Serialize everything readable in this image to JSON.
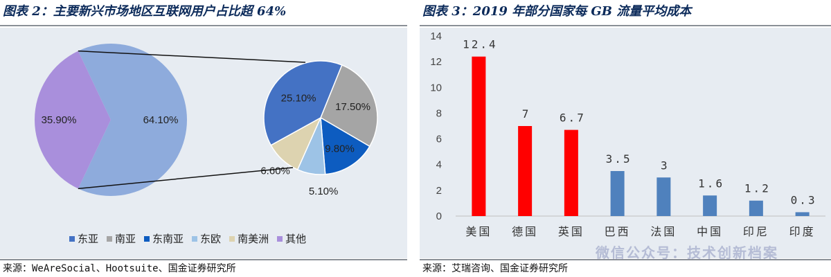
{
  "left": {
    "title": "图表 2：主要新兴市场地区互联网用户占比超 64%",
    "source": "来源：WeAreSocial、Hootsuite、国金证券研究所",
    "colors": {
      "east_asia": "#4472c4",
      "south_asia": "#a5a5a5",
      "southeast_asia": "#0d5cc0",
      "east_europe": "#9dc3e6",
      "south_america": "#ddd3b0",
      "other": "#a98fdc",
      "emerging": "#8eabdc"
    },
    "chart_data": {
      "type": "pie",
      "outer": {
        "slices": [
          {
            "label": "64.10%",
            "value": 64.1
          },
          {
            "label": "35.90%",
            "value": 35.9
          }
        ]
      },
      "inner": {
        "slices": [
          {
            "name": "东亚",
            "label": "25.10%",
            "value": 25.1
          },
          {
            "name": "南亚",
            "label": "17.50%",
            "value": 17.5
          },
          {
            "name": "东南亚",
            "label": "9.80%",
            "value": 9.8
          },
          {
            "name": "东欧",
            "label": "5.10%",
            "value": 5.1
          },
          {
            "name": "南美洲",
            "label": "6.60%",
            "value": 6.6
          }
        ]
      },
      "legend": [
        "东亚",
        "南亚",
        "东南亚",
        "东欧",
        "南美洲",
        "其他"
      ],
      "legend_position": "bottom"
    }
  },
  "right": {
    "title": "图表 3：2019 年部分国家每 GB 流量平均成本",
    "source": "来源：艾瑞咨询、国金证券研究所",
    "watermark": "微信公众号：技术创新档案",
    "colors": {
      "highlight": "#ff0000",
      "normal": "#4f81bd"
    },
    "chart_data": {
      "type": "bar",
      "categories": [
        "美国",
        "德国",
        "英国",
        "巴西",
        "法国",
        "中国",
        "印尼",
        "印度"
      ],
      "values": [
        12.4,
        7,
        6.7,
        3.5,
        3,
        1.6,
        1.2,
        0.3
      ],
      "value_labels": [
        "12.4",
        "7",
        "6.7",
        "3.5",
        "3",
        "1.6",
        "1.2",
        "0.3"
      ],
      "highlighted": [
        true,
        true,
        true,
        false,
        false,
        false,
        false,
        false
      ],
      "ylim": [
        0,
        14
      ],
      "yticks": [
        "0",
        "2",
        "4",
        "6",
        "8",
        "10",
        "12",
        "14"
      ],
      "grid": false
    }
  }
}
